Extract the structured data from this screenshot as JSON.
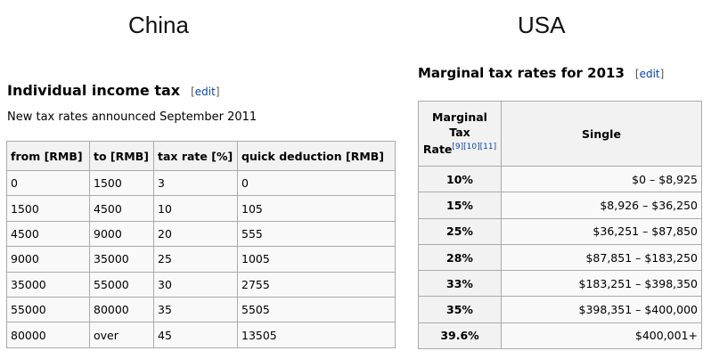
{
  "labels": {
    "china": "China",
    "usa": "USA"
  },
  "china": {
    "heading": "Individual income tax",
    "edit": "edit",
    "note": "New tax rates announced September 2011",
    "columns": [
      "from [RMB]",
      "to [RMB]",
      "tax rate [%]",
      "quick deduction [RMB]"
    ],
    "rows": [
      [
        "0",
        "1500",
        "3",
        "0"
      ],
      [
        "1500",
        "4500",
        "10",
        "105"
      ],
      [
        "4500",
        "9000",
        "20",
        "555"
      ],
      [
        "9000",
        "35000",
        "25",
        "1005"
      ],
      [
        "35000",
        "55000",
        "30",
        "2755"
      ],
      [
        "55000",
        "80000",
        "35",
        "5505"
      ],
      [
        "80000",
        "over",
        "45",
        "13505"
      ]
    ]
  },
  "usa": {
    "heading": "Marginal tax rates for 2013",
    "edit": "edit",
    "col_rate_line1": "Marginal",
    "col_rate_line2": "Tax",
    "col_rate_line3": "Rate",
    "col_rate_refs": "[9][10][11]",
    "col_single": "Single",
    "rows": [
      [
        "10%",
        "$0 – $8,925"
      ],
      [
        "15%",
        "$8,926 – $36,250"
      ],
      [
        "25%",
        "$36,251 – $87,850"
      ],
      [
        "28%",
        "$87,851 – $183,250"
      ],
      [
        "33%",
        "$183,251 – $398,350"
      ],
      [
        "35%",
        "$398,351 – $400,000"
      ],
      [
        "39.6%",
        "$400,001+"
      ]
    ]
  }
}
